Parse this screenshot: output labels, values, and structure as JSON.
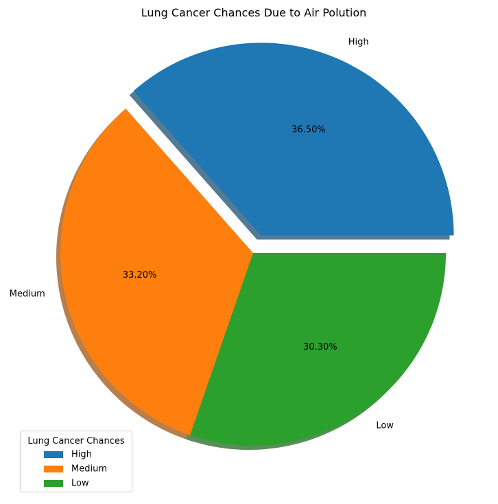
{
  "chart_data": {
    "type": "pie",
    "title": "Lung Cancer Chances Due to Air Polution",
    "categories": [
      "High",
      "Medium",
      "Low"
    ],
    "values": [
      36.5,
      33.2,
      30.3
    ],
    "percent_labels": [
      "36.50%",
      "33.20%",
      "30.30%"
    ],
    "colors": [
      "#1f77b4",
      "#ff7f0e",
      "#2ca02c"
    ],
    "explode": [
      0.1,
      0.0,
      0.0
    ],
    "shadow": true,
    "start_angle": 0,
    "legend": {
      "title": "Lung Cancer Chances",
      "placement": "lower-left",
      "entries": [
        "High",
        "Medium",
        "Low"
      ]
    }
  }
}
